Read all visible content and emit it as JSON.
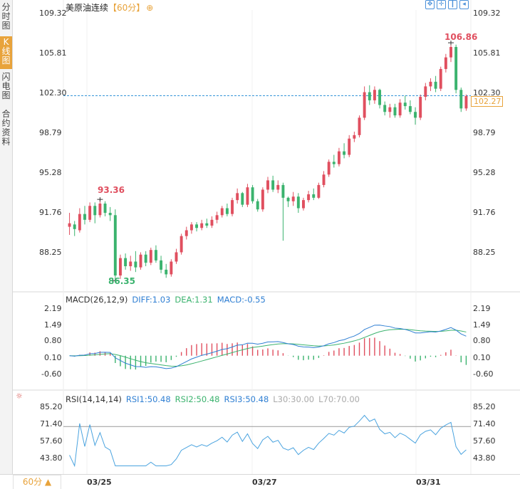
{
  "sidebar": {
    "tabs": [
      {
        "label": "分时图",
        "active": false
      },
      {
        "label": "K线图",
        "active": true
      },
      {
        "label": "闪电图",
        "active": false
      },
      {
        "label": "合约资料",
        "active": false
      }
    ]
  },
  "title": {
    "name": "美原油连续",
    "period": "【60分】",
    "add_icon": "plus-circle-icon"
  },
  "toolbar": {
    "icons": [
      "crosshair-expand-icon",
      "crosshair-shrink-icon",
      "vertical-line-icon",
      "back-arrow-icon"
    ]
  },
  "price_axis": {
    "labels": [
      "109.32",
      "105.81",
      "102.30",
      "98.79",
      "95.28",
      "91.76",
      "88.25"
    ],
    "current_price": "102.27",
    "current_line_value": 102.3,
    "high_label": "106.86",
    "low_label": "86.35",
    "local_high_label": "93.36"
  },
  "macd": {
    "header": "MACD(26,12,9)",
    "diff": "DIFF:1.03",
    "dea": "DEA:1.31",
    "macd": "MACD:-0.55",
    "axis_labels": [
      "2.19",
      "1.49",
      "0.80",
      "0.10",
      "-0.60"
    ]
  },
  "rsi": {
    "header": "RSI(14,14,14)",
    "rsi1": "RSI1:50.48",
    "rsi2": "RSI2:50.48",
    "rsi3": "RSI3:50.48",
    "l30": "L30:30.00",
    "l70": "L70:70.00",
    "axis_labels": [
      "85.20",
      "71.40",
      "57.60",
      "43.80"
    ],
    "settings_icon": "sun-gear-icon"
  },
  "bottom": {
    "period_select": "60分 ▲",
    "dates": [
      "03/25",
      "03/27",
      "03/31"
    ]
  },
  "colors": {
    "up": "#e04f5f",
    "down": "#3bb36e",
    "accent": "#e8a33b",
    "diff_line": "#2f7fd3",
    "dea_line": "#3bb36e",
    "rsi_line": "#4aa3df",
    "current_line": "#2a8fd6"
  },
  "chart_data": {
    "type": "candlestick",
    "price_range": [
      86.35,
      109.32
    ],
    "candles": [
      [
        91.0,
        92.2,
        91.3,
        90.3
      ],
      [
        91.2,
        91.5,
        90.8,
        90.2
      ],
      [
        90.7,
        92.6,
        92.1,
        90.5
      ],
      [
        92.1,
        92.8,
        91.6,
        91.2
      ],
      [
        91.6,
        93.1,
        92.8,
        91.4
      ],
      [
        92.8,
        93.1,
        92.0,
        91.3
      ],
      [
        92.0,
        93.36,
        93.0,
        91.8
      ],
      [
        93.0,
        93.2,
        92.2,
        91.9
      ],
      [
        92.2,
        92.7,
        92.0,
        91.5
      ],
      [
        92.0,
        92.5,
        86.8,
        86.35
      ],
      [
        86.8,
        88.6,
        88.3,
        86.5
      ],
      [
        88.3,
        88.7,
        87.6,
        87.3
      ],
      [
        87.6,
        88.5,
        88.0,
        87.2
      ],
      [
        88.0,
        88.9,
        87.5,
        87.1
      ],
      [
        87.5,
        88.8,
        88.6,
        87.3
      ],
      [
        88.6,
        88.9,
        87.9,
        87.6
      ],
      [
        87.9,
        89.2,
        89.0,
        87.7
      ],
      [
        89.0,
        89.4,
        88.1,
        87.9
      ],
      [
        88.1,
        88.5,
        87.3,
        87.0
      ],
      [
        87.3,
        87.8,
        86.9,
        86.6
      ],
      [
        86.9,
        88.2,
        88.0,
        86.7
      ],
      [
        88.0,
        89.1,
        88.8,
        87.8
      ],
      [
        88.8,
        90.4,
        90.2,
        88.6
      ],
      [
        90.2,
        91.0,
        90.7,
        89.9
      ],
      [
        90.7,
        91.4,
        91.2,
        90.4
      ],
      [
        91.2,
        91.4,
        90.9,
        90.6
      ],
      [
        90.9,
        91.6,
        91.3,
        90.7
      ],
      [
        91.3,
        91.7,
        91.1,
        90.9
      ],
      [
        91.1,
        91.9,
        91.6,
        90.9
      ],
      [
        91.6,
        92.3,
        92.0,
        91.3
      ],
      [
        92.0,
        92.8,
        92.6,
        91.8
      ],
      [
        92.6,
        93.0,
        92.1,
        91.9
      ],
      [
        92.1,
        93.5,
        93.3,
        91.9
      ],
      [
        93.3,
        94.3,
        93.9,
        93.0
      ],
      [
        93.9,
        94.0,
        92.9,
        92.7
      ],
      [
        92.9,
        94.7,
        94.4,
        92.7
      ],
      [
        94.4,
        94.6,
        93.2,
        93.0
      ],
      [
        93.2,
        93.4,
        92.5,
        92.3
      ],
      [
        92.5,
        94.4,
        94.2,
        92.3
      ],
      [
        94.2,
        95.3,
        95.0,
        93.9
      ],
      [
        95.0,
        95.4,
        94.2,
        94.0
      ],
      [
        94.2,
        95.0,
        94.6,
        93.9
      ],
      [
        94.6,
        94.8,
        93.5,
        89.8
      ],
      [
        93.5,
        93.6,
        93.2,
        92.7
      ],
      [
        93.2,
        94.0,
        93.6,
        92.8
      ],
      [
        93.6,
        93.9,
        92.6,
        92.2
      ],
      [
        92.6,
        93.5,
        93.3,
        92.4
      ],
      [
        93.3,
        94.1,
        93.8,
        93.1
      ],
      [
        93.8,
        94.3,
        93.5,
        93.3
      ],
      [
        93.5,
        94.8,
        94.6,
        93.4
      ],
      [
        94.6,
        95.8,
        95.5,
        94.4
      ],
      [
        95.5,
        96.8,
        96.6,
        95.3
      ],
      [
        96.6,
        97.2,
        96.4,
        96.1
      ],
      [
        96.4,
        97.8,
        97.5,
        96.2
      ],
      [
        97.5,
        98.2,
        97.2,
        96.9
      ],
      [
        97.2,
        98.9,
        98.6,
        97.0
      ],
      [
        98.6,
        99.2,
        98.9,
        98.3
      ],
      [
        98.9,
        100.6,
        100.4,
        98.7
      ],
      [
        100.4,
        103.1,
        102.6,
        100.2
      ],
      [
        102.6,
        103.2,
        101.9,
        101.5
      ],
      [
        101.9,
        103.1,
        102.8,
        101.6
      ],
      [
        102.8,
        102.9,
        101.5,
        101.2
      ],
      [
        101.5,
        101.8,
        100.9,
        100.6
      ],
      [
        100.9,
        101.6,
        101.3,
        100.4
      ],
      [
        101.3,
        101.6,
        100.6,
        100.4
      ],
      [
        100.6,
        102.0,
        101.7,
        100.4
      ],
      [
        101.7,
        102.3,
        101.4,
        101.1
      ],
      [
        101.4,
        101.9,
        100.9,
        100.7
      ],
      [
        100.9,
        101.3,
        100.4,
        99.8
      ],
      [
        100.4,
        102.4,
        102.2,
        100.2
      ],
      [
        102.2,
        103.4,
        103.1,
        101.9
      ],
      [
        103.1,
        103.8,
        103.5,
        102.7
      ],
      [
        103.5,
        104.0,
        102.9,
        102.6
      ],
      [
        102.9,
        104.8,
        104.6,
        102.7
      ],
      [
        104.6,
        105.9,
        105.6,
        104.3
      ],
      [
        105.6,
        106.86,
        106.5,
        105.2
      ],
      [
        106.5,
        106.7,
        102.8,
        102.5
      ],
      [
        102.8,
        103.0,
        101.2,
        100.9
      ],
      [
        101.2,
        102.4,
        102.27,
        101.0
      ]
    ],
    "macd_range": [
      -0.6,
      2.19
    ],
    "rsi_range": [
      43.8,
      85.2
    ]
  }
}
